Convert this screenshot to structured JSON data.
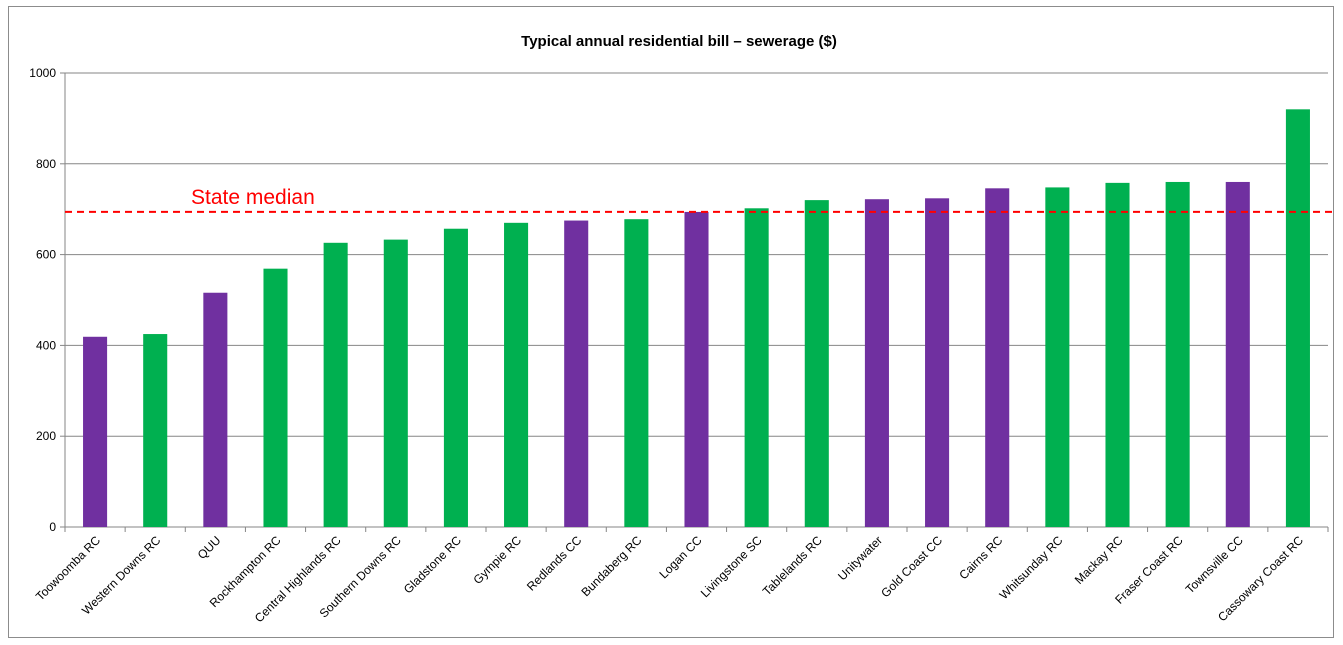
{
  "chart_data": {
    "type": "bar",
    "title": "Typical annual residential bill – sewerage ($)",
    "xlabel": "",
    "ylabel": "",
    "ylim": [
      0,
      1000
    ],
    "yticks": [
      0,
      200,
      400,
      600,
      800,
      1000
    ],
    "grid": true,
    "categories": [
      "Toowoomba RC",
      "Western Downs RC",
      "QUU",
      "Rockhampton RC",
      "Central Highlands RC",
      "Southern Downs RC",
      "Gladstone RC",
      "Gympie RC",
      "Redlands CC",
      "Bundaberg RC",
      "Logan CC",
      "Livingstone  SC",
      "Tablelands RC",
      "Unitywater",
      "Gold Coast CC",
      "Cairns RC",
      "Whitsunday RC",
      "Mackay RC",
      "Fraser Coast RC",
      "Townsville CC",
      "Cassowary Coast RC"
    ],
    "values": [
      419,
      425,
      516,
      569,
      626,
      633,
      657,
      670,
      675,
      678,
      694,
      702,
      720,
      722,
      724,
      746,
      748,
      758,
      760,
      760,
      920
    ],
    "bar_colors": [
      "#7030a0",
      "#00b050",
      "#7030a0",
      "#00b050",
      "#00b050",
      "#00b050",
      "#00b050",
      "#00b050",
      "#7030a0",
      "#00b050",
      "#7030a0",
      "#00b050",
      "#00b050",
      "#7030a0",
      "#7030a0",
      "#7030a0",
      "#00b050",
      "#00b050",
      "#00b050",
      "#7030a0",
      "#00b050"
    ],
    "reference_line": {
      "label": "State median",
      "value": 694,
      "color": "#ff0000"
    },
    "colors": {
      "purple": "#7030a0",
      "green": "#00b050",
      "grid": "#868686",
      "axis": "#868686"
    }
  }
}
